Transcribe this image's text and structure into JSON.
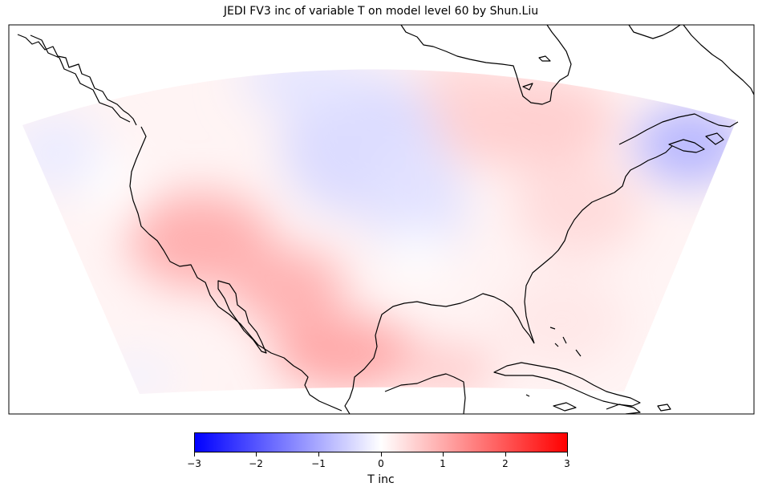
{
  "figure": {
    "title": "JEDI FV3 inc of variable T on model level 60 by Shun.Liu"
  },
  "map": {
    "projection": "lambert-conformal",
    "region": "North America (CONUS regional domain)",
    "field": "T inc",
    "colormap": "bwr",
    "coastlines": true
  },
  "colorbar": {
    "label": "T inc",
    "min": -3,
    "max": 3,
    "ticks": [
      "−3",
      "−2",
      "−1",
      "0",
      "1",
      "2",
      "3"
    ],
    "colors": {
      "low": "#0000ff",
      "mid": "#ffffff",
      "high": "#ff0000"
    }
  }
}
